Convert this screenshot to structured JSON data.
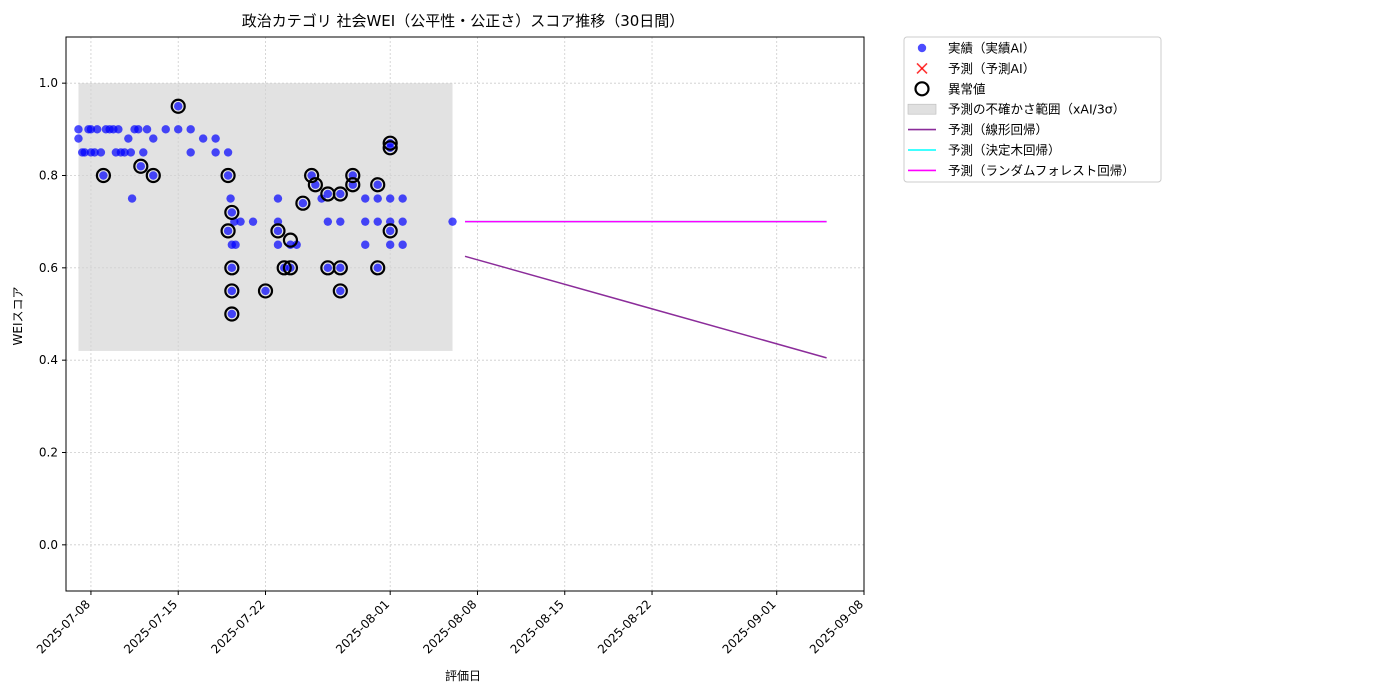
{
  "chart_data": {
    "type": "scatter",
    "title": "政治カテゴリ 社会WEI（公平性・公正さ）スコア推移（30日間）",
    "xlabel": "評価日",
    "ylabel": "WEIスコア",
    "xlim": [
      "2025-07-06",
      "2025-09-08"
    ],
    "ylim": [
      -0.1,
      1.1
    ],
    "yticks": [
      0.0,
      0.2,
      0.4,
      0.6,
      0.8,
      1.0
    ],
    "ytick_labels": [
      "0.0",
      "0.2",
      "0.4",
      "0.6",
      "0.8",
      "1.0"
    ],
    "xticks": [
      "2025-07-08",
      "2025-07-15",
      "2025-07-22",
      "2025-08-01",
      "2025-08-08",
      "2025-08-15",
      "2025-08-22",
      "2025-09-01",
      "2025-09-08"
    ],
    "grid": true,
    "legend_position": "outside-top-right",
    "legend": [
      {
        "key": "actual",
        "label": "実績（実績AI）",
        "marker": "dot",
        "color": "#0000ff"
      },
      {
        "key": "predicted_point",
        "label": "予測（予測AI）",
        "marker": "x",
        "color": "#ff0000"
      },
      {
        "key": "anomaly",
        "label": "異常値",
        "marker": "ring",
        "color": "#000000"
      },
      {
        "key": "uncertainty",
        "label": "予測の不確かさ範囲（xAI/3σ）",
        "marker": "patch",
        "color": "#d3d3d3"
      },
      {
        "key": "linear",
        "label": "予測（線形回帰）",
        "marker": "line",
        "color": "#8b2c9a"
      },
      {
        "key": "tree",
        "label": "予測（決定木回帰）",
        "marker": "line",
        "color": "#00ffff"
      },
      {
        "key": "forest",
        "label": "予測（ランダムフォレスト回帰）",
        "marker": "line",
        "color": "#ff00ff"
      }
    ],
    "uncertainty_band": {
      "x_start": "2025-07-07",
      "x_end": "2025-08-06",
      "y_low": 0.42,
      "y_high": 1.0
    },
    "actual": [
      {
        "x": "2025-07-07",
        "y": 0.9
      },
      {
        "x": "2025-07-07",
        "y": 0.88
      },
      {
        "x": "2025-07-07.3",
        "y": 0.85
      },
      {
        "x": "2025-07-07.5",
        "y": 0.85
      },
      {
        "x": "2025-07-07.8",
        "y": 0.9
      },
      {
        "x": "2025-07-08",
        "y": 0.9
      },
      {
        "x": "2025-07-08",
        "y": 0.85
      },
      {
        "x": "2025-07-08.3",
        "y": 0.85
      },
      {
        "x": "2025-07-08.5",
        "y": 0.9
      },
      {
        "x": "2025-07-08.8",
        "y": 0.85
      },
      {
        "x": "2025-07-09",
        "y": 0.8
      },
      {
        "x": "2025-07-09.2",
        "y": 0.9
      },
      {
        "x": "2025-07-09.5",
        "y": 0.9
      },
      {
        "x": "2025-07-09.8",
        "y": 0.9
      },
      {
        "x": "2025-07-10",
        "y": 0.85
      },
      {
        "x": "2025-07-10.2",
        "y": 0.9
      },
      {
        "x": "2025-07-10.4",
        "y": 0.85
      },
      {
        "x": "2025-07-10.7",
        "y": 0.85
      },
      {
        "x": "2025-07-11",
        "y": 0.88
      },
      {
        "x": "2025-07-11.2",
        "y": 0.85
      },
      {
        "x": "2025-07-11.3",
        "y": 0.75
      },
      {
        "x": "2025-07-11.5",
        "y": 0.9
      },
      {
        "x": "2025-07-11.8",
        "y": 0.9
      },
      {
        "x": "2025-07-12",
        "y": 0.82
      },
      {
        "x": "2025-07-12.2",
        "y": 0.85
      },
      {
        "x": "2025-07-12.5",
        "y": 0.9
      },
      {
        "x": "2025-07-13",
        "y": 0.8
      },
      {
        "x": "2025-07-13",
        "y": 0.88
      },
      {
        "x": "2025-07-14",
        "y": 0.9
      },
      {
        "x": "2025-07-15",
        "y": 0.95
      },
      {
        "x": "2025-07-15",
        "y": 0.9
      },
      {
        "x": "2025-07-16",
        "y": 0.85
      },
      {
        "x": "2025-07-16",
        "y": 0.9
      },
      {
        "x": "2025-07-17",
        "y": 0.88
      },
      {
        "x": "2025-07-18",
        "y": 0.85
      },
      {
        "x": "2025-07-18",
        "y": 0.88
      },
      {
        "x": "2025-07-19",
        "y": 0.85
      },
      {
        "x": "2025-07-19",
        "y": 0.8
      },
      {
        "x": "2025-07-19.2",
        "y": 0.75
      },
      {
        "x": "2025-07-19.3",
        "y": 0.72
      },
      {
        "x": "2025-07-19.5",
        "y": 0.7
      },
      {
        "x": "2025-07-19",
        "y": 0.68
      },
      {
        "x": "2025-07-19.3",
        "y": 0.65
      },
      {
        "x": "2025-07-19.6",
        "y": 0.65
      },
      {
        "x": "2025-07-19.3",
        "y": 0.6
      },
      {
        "x": "2025-07-19.3",
        "y": 0.55
      },
      {
        "x": "2025-07-19.3",
        "y": 0.5
      },
      {
        "x": "2025-07-20",
        "y": 0.7
      },
      {
        "x": "2025-07-21",
        "y": 0.7
      },
      {
        "x": "2025-07-22",
        "y": 0.55
      },
      {
        "x": "2025-07-23",
        "y": 0.75
      },
      {
        "x": "2025-07-23",
        "y": 0.7
      },
      {
        "x": "2025-07-23",
        "y": 0.68
      },
      {
        "x": "2025-07-23",
        "y": 0.65
      },
      {
        "x": "2025-07-23.5",
        "y": 0.6
      },
      {
        "x": "2025-07-24",
        "y": 0.65
      },
      {
        "x": "2025-07-24",
        "y": 0.6
      },
      {
        "x": "2025-07-24.5",
        "y": 0.65
      },
      {
        "x": "2025-07-25",
        "y": 0.74
      },
      {
        "x": "2025-07-25.7",
        "y": 0.8
      },
      {
        "x": "2025-07-26",
        "y": 0.78
      },
      {
        "x": "2025-07-26.5",
        "y": 0.75
      },
      {
        "x": "2025-07-27",
        "y": 0.76
      },
      {
        "x": "2025-07-27",
        "y": 0.7
      },
      {
        "x": "2025-07-27",
        "y": 0.6
      },
      {
        "x": "2025-07-28",
        "y": 0.76
      },
      {
        "x": "2025-07-28",
        "y": 0.7
      },
      {
        "x": "2025-07-28",
        "y": 0.6
      },
      {
        "x": "2025-07-28",
        "y": 0.55
      },
      {
        "x": "2025-07-29",
        "y": 0.8
      },
      {
        "x": "2025-07-29",
        "y": 0.78
      },
      {
        "x": "2025-07-30",
        "y": 0.75
      },
      {
        "x": "2025-07-30",
        "y": 0.7
      },
      {
        "x": "2025-07-30",
        "y": 0.65
      },
      {
        "x": "2025-07-31",
        "y": 0.78
      },
      {
        "x": "2025-07-31",
        "y": 0.75
      },
      {
        "x": "2025-07-31",
        "y": 0.7
      },
      {
        "x": "2025-07-31",
        "y": 0.6
      },
      {
        "x": "2025-08-01",
        "y": 0.87
      },
      {
        "x": "2025-08-01",
        "y": 0.86
      },
      {
        "x": "2025-08-01",
        "y": 0.75
      },
      {
        "x": "2025-08-01",
        "y": 0.7
      },
      {
        "x": "2025-08-01",
        "y": 0.68
      },
      {
        "x": "2025-08-01",
        "y": 0.65
      },
      {
        "x": "2025-08-02",
        "y": 0.75
      },
      {
        "x": "2025-08-02",
        "y": 0.7
      },
      {
        "x": "2025-08-02",
        "y": 0.65
      },
      {
        "x": "2025-08-06",
        "y": 0.7
      }
    ],
    "anomalies": [
      {
        "x": "2025-07-09",
        "y": 0.8
      },
      {
        "x": "2025-07-12",
        "y": 0.82
      },
      {
        "x": "2025-07-13",
        "y": 0.8
      },
      {
        "x": "2025-07-15",
        "y": 0.95
      },
      {
        "x": "2025-07-19",
        "y": 0.8
      },
      {
        "x": "2025-07-19.3",
        "y": 0.72
      },
      {
        "x": "2025-07-19",
        "y": 0.68
      },
      {
        "x": "2025-07-19.3",
        "y": 0.6
      },
      {
        "x": "2025-07-19.3",
        "y": 0.55
      },
      {
        "x": "2025-07-19.3",
        "y": 0.5
      },
      {
        "x": "2025-07-22",
        "y": 0.55
      },
      {
        "x": "2025-07-23",
        "y": 0.68
      },
      {
        "x": "2025-07-23.5",
        "y": 0.6
      },
      {
        "x": "2025-07-24",
        "y": 0.66
      },
      {
        "x": "2025-07-24",
        "y": 0.6
      },
      {
        "x": "2025-07-25",
        "y": 0.74
      },
      {
        "x": "2025-07-25.7",
        "y": 0.8
      },
      {
        "x": "2025-07-26",
        "y": 0.78
      },
      {
        "x": "2025-07-27",
        "y": 0.76
      },
      {
        "x": "2025-07-27",
        "y": 0.6
      },
      {
        "x": "2025-07-28",
        "y": 0.76
      },
      {
        "x": "2025-07-28",
        "y": 0.6
      },
      {
        "x": "2025-07-28",
        "y": 0.55
      },
      {
        "x": "2025-07-29",
        "y": 0.8
      },
      {
        "x": "2025-07-29",
        "y": 0.78
      },
      {
        "x": "2025-07-31",
        "y": 0.78
      },
      {
        "x": "2025-07-31",
        "y": 0.6
      },
      {
        "x": "2025-08-01",
        "y": 0.87
      },
      {
        "x": "2025-08-01",
        "y": 0.86
      },
      {
        "x": "2025-08-01",
        "y": 0.68
      }
    ],
    "forecast_lines": [
      {
        "key": "linear",
        "points": [
          {
            "x": "2025-08-07",
            "y": 0.625
          },
          {
            "x": "2025-09-05",
            "y": 0.405
          }
        ]
      },
      {
        "key": "tree",
        "points": [
          {
            "x": "2025-08-07",
            "y": 0.7
          },
          {
            "x": "2025-09-05",
            "y": 0.7
          }
        ]
      },
      {
        "key": "forest",
        "points": [
          {
            "x": "2025-08-07",
            "y": 0.7
          },
          {
            "x": "2025-09-05",
            "y": 0.7
          }
        ]
      }
    ]
  }
}
